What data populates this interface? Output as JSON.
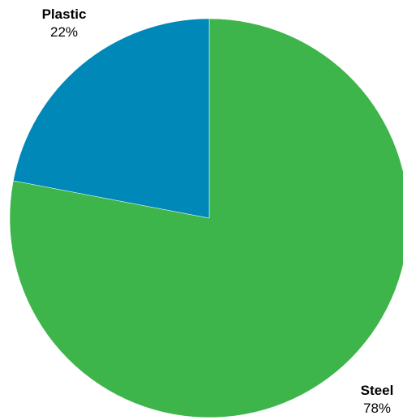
{
  "chart_data": {
    "type": "pie",
    "title": "",
    "slices": [
      {
        "label": "Steel",
        "value": 78,
        "value_label": "78%",
        "color": "#3db54a"
      },
      {
        "label": "Plastic",
        "value": 22,
        "value_label": "22%",
        "color": "#0088b8"
      }
    ],
    "start": "top",
    "direction": "clockwise",
    "legend": "none",
    "data_labels": "outside"
  }
}
